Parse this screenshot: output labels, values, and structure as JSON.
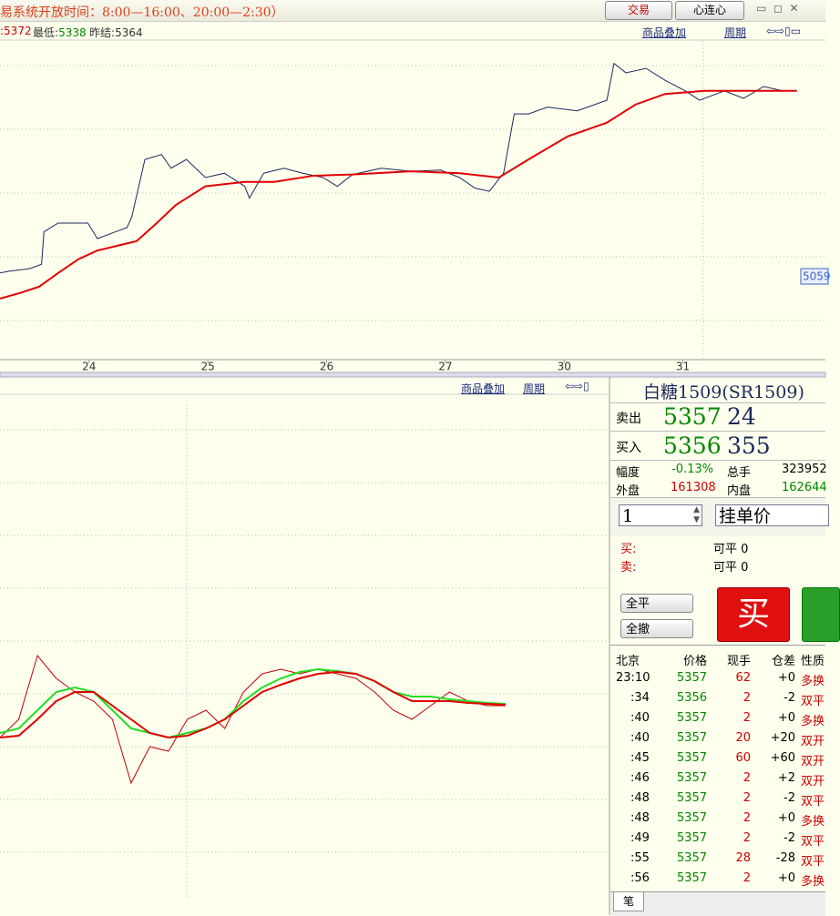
{
  "header": {
    "notice": "易系统开放时间：8:00—16:00、20:00—2:30）",
    "trade_button": "交易",
    "xlx_button": "心连心"
  },
  "quote_bar": {
    "high_value": "5372",
    "low_label": "最低",
    "low_value": "5338",
    "prev_label": "昨结",
    "prev_value": "5364",
    "overlay_link": "商品叠加",
    "period_link": "周期"
  },
  "price_tag": "5059",
  "chart_data": [
    {
      "type": "line",
      "xlim": [
        -0.75,
        6.2
      ],
      "xticks": [
        {
          "value": 0,
          "label": "24"
        },
        {
          "value": 1,
          "label": "25"
        },
        {
          "value": 2,
          "label": "26"
        },
        {
          "value": 3,
          "label": "27"
        },
        {
          "value": 4,
          "label": "30"
        },
        {
          "value": 5,
          "label": "31"
        }
      ],
      "ylim": [
        4926,
        5437
      ],
      "series": [
        {
          "color": "#1a2a5a",
          "x": [
            -0.75,
            -0.67,
            -0.5,
            -0.4,
            -0.38,
            -0.26,
            -0.01,
            0.07,
            0.32,
            0.36,
            0.47,
            0.61,
            0.69,
            0.82,
            0.98,
            1.14,
            1.31,
            1.35,
            1.47,
            1.64,
            1.8,
            1.97,
            2.09,
            2.22,
            2.46,
            2.71,
            2.96,
            3.12,
            3.25,
            3.37,
            3.49,
            3.58,
            3.7,
            3.86,
            4.11,
            4.36,
            4.42,
            4.52,
            4.69,
            4.85,
            5.02,
            5.14,
            5.35,
            5.51,
            5.68,
            5.84,
            5.96
          ],
          "values": [
            5065,
            5068,
            5072,
            5079,
            5131,
            5145,
            5145,
            5120,
            5138,
            5155,
            5247,
            5255,
            5233,
            5247,
            5218,
            5225,
            5204,
            5185,
            5225,
            5233,
            5225,
            5218,
            5204,
            5223,
            5233,
            5228,
            5230,
            5218,
            5201,
            5196,
            5225,
            5320,
            5320,
            5331,
            5325,
            5342,
            5401,
            5386,
            5393,
            5374,
            5357,
            5342,
            5357,
            5345,
            5364,
            5357,
            5357
          ]
        },
        {
          "color": "#e00000",
          "x": [
            -0.75,
            -0.58,
            -0.42,
            -0.26,
            -0.09,
            0.07,
            0.4,
            0.57,
            0.73,
            0.98,
            1.31,
            1.56,
            1.89,
            2.22,
            2.71,
            3.12,
            3.45,
            3.7,
            4.03,
            4.36,
            4.6,
            4.85,
            5.18,
            5.68,
            5.96
          ],
          "values": [
            5024,
            5033,
            5043,
            5065,
            5087,
            5101,
            5116,
            5145,
            5174,
            5204,
            5211,
            5211,
            5221,
            5223,
            5228,
            5225,
            5218,
            5247,
            5284,
            5306,
            5335,
            5352,
            5357,
            5357,
            5357
          ]
        }
      ]
    },
    {
      "type": "line",
      "ylim": [
        0,
        550
      ],
      "series": [
        {
          "color": "#c00000",
          "values": [
            175,
            195,
            265,
            240,
            225,
            215,
            195,
            125,
            165,
            160,
            195,
            205,
            185,
            225,
            245,
            250,
            245,
            250,
            245,
            240,
            225,
            205,
            195,
            210,
            225,
            215,
            210,
            210
          ]
        },
        {
          "color": "#22dd22",
          "values": [
            180,
            185,
            205,
            225,
            230,
            225,
            205,
            185,
            180,
            175,
            180,
            185,
            195,
            215,
            230,
            240,
            247,
            250,
            248,
            245,
            237,
            225,
            220,
            220,
            217,
            215,
            213,
            212
          ]
        },
        {
          "color": "#e00000",
          "values": [
            175,
            177,
            195,
            215,
            225,
            225,
            210,
            195,
            180,
            175,
            177,
            185,
            195,
            210,
            225,
            233,
            240,
            245,
            247,
            245,
            237,
            225,
            215,
            215,
            215,
            213,
            212,
            211
          ]
        }
      ]
    }
  ],
  "lower_bar": {
    "overlay_link": "商品叠加",
    "period_link": "周期"
  },
  "panel": {
    "title": "白糖1509(SR1509)",
    "sell_label": "卖出",
    "sell_price": "5357",
    "sell_volume": "24",
    "buy_label": "买入",
    "buy_price": "5356",
    "buy_volume": "355",
    "change_label": "幅度",
    "change_value": "-0.13%",
    "total_label": "总手",
    "total_value": "323952",
    "outer_label": "外盘",
    "outer_value": "161308",
    "inner_label": "内盘",
    "inner_value": "162644",
    "quantity": "1",
    "order_type": "挂单价",
    "buy_short": "买:",
    "sell_short": "卖:",
    "closable_label_1": "可平",
    "closable_value_1": "0",
    "closable_label_2": "可平",
    "closable_value_2": "0",
    "close_all": "全平",
    "cancel_all": "全撤",
    "buy_button": "买"
  },
  "ticks_table": {
    "headers": [
      "北京",
      "价格",
      "现手",
      "仓差",
      "性质"
    ],
    "rows": [
      [
        "23:10",
        "5357",
        "62",
        "+0",
        "多换"
      ],
      [
        ":34",
        "5356",
        "2",
        "-2",
        "双平"
      ],
      [
        ":40",
        "5357",
        "2",
        "+0",
        "多换"
      ],
      [
        ":40",
        "5357",
        "20",
        "+20",
        "双开"
      ],
      [
        ":45",
        "5357",
        "60",
        "+60",
        "双开"
      ],
      [
        ":46",
        "5357",
        "2",
        "+2",
        "双开"
      ],
      [
        ":48",
        "5357",
        "2",
        "-2",
        "双平"
      ],
      [
        ":48",
        "5357",
        "2",
        "+0",
        "多换"
      ],
      [
        ":49",
        "5357",
        "2",
        "-2",
        "双平"
      ],
      [
        ":55",
        "5357",
        "28",
        "-28",
        "双平"
      ],
      [
        ":56",
        "5357",
        "2",
        "+0",
        "多换"
      ]
    ],
    "tab": "笔"
  }
}
